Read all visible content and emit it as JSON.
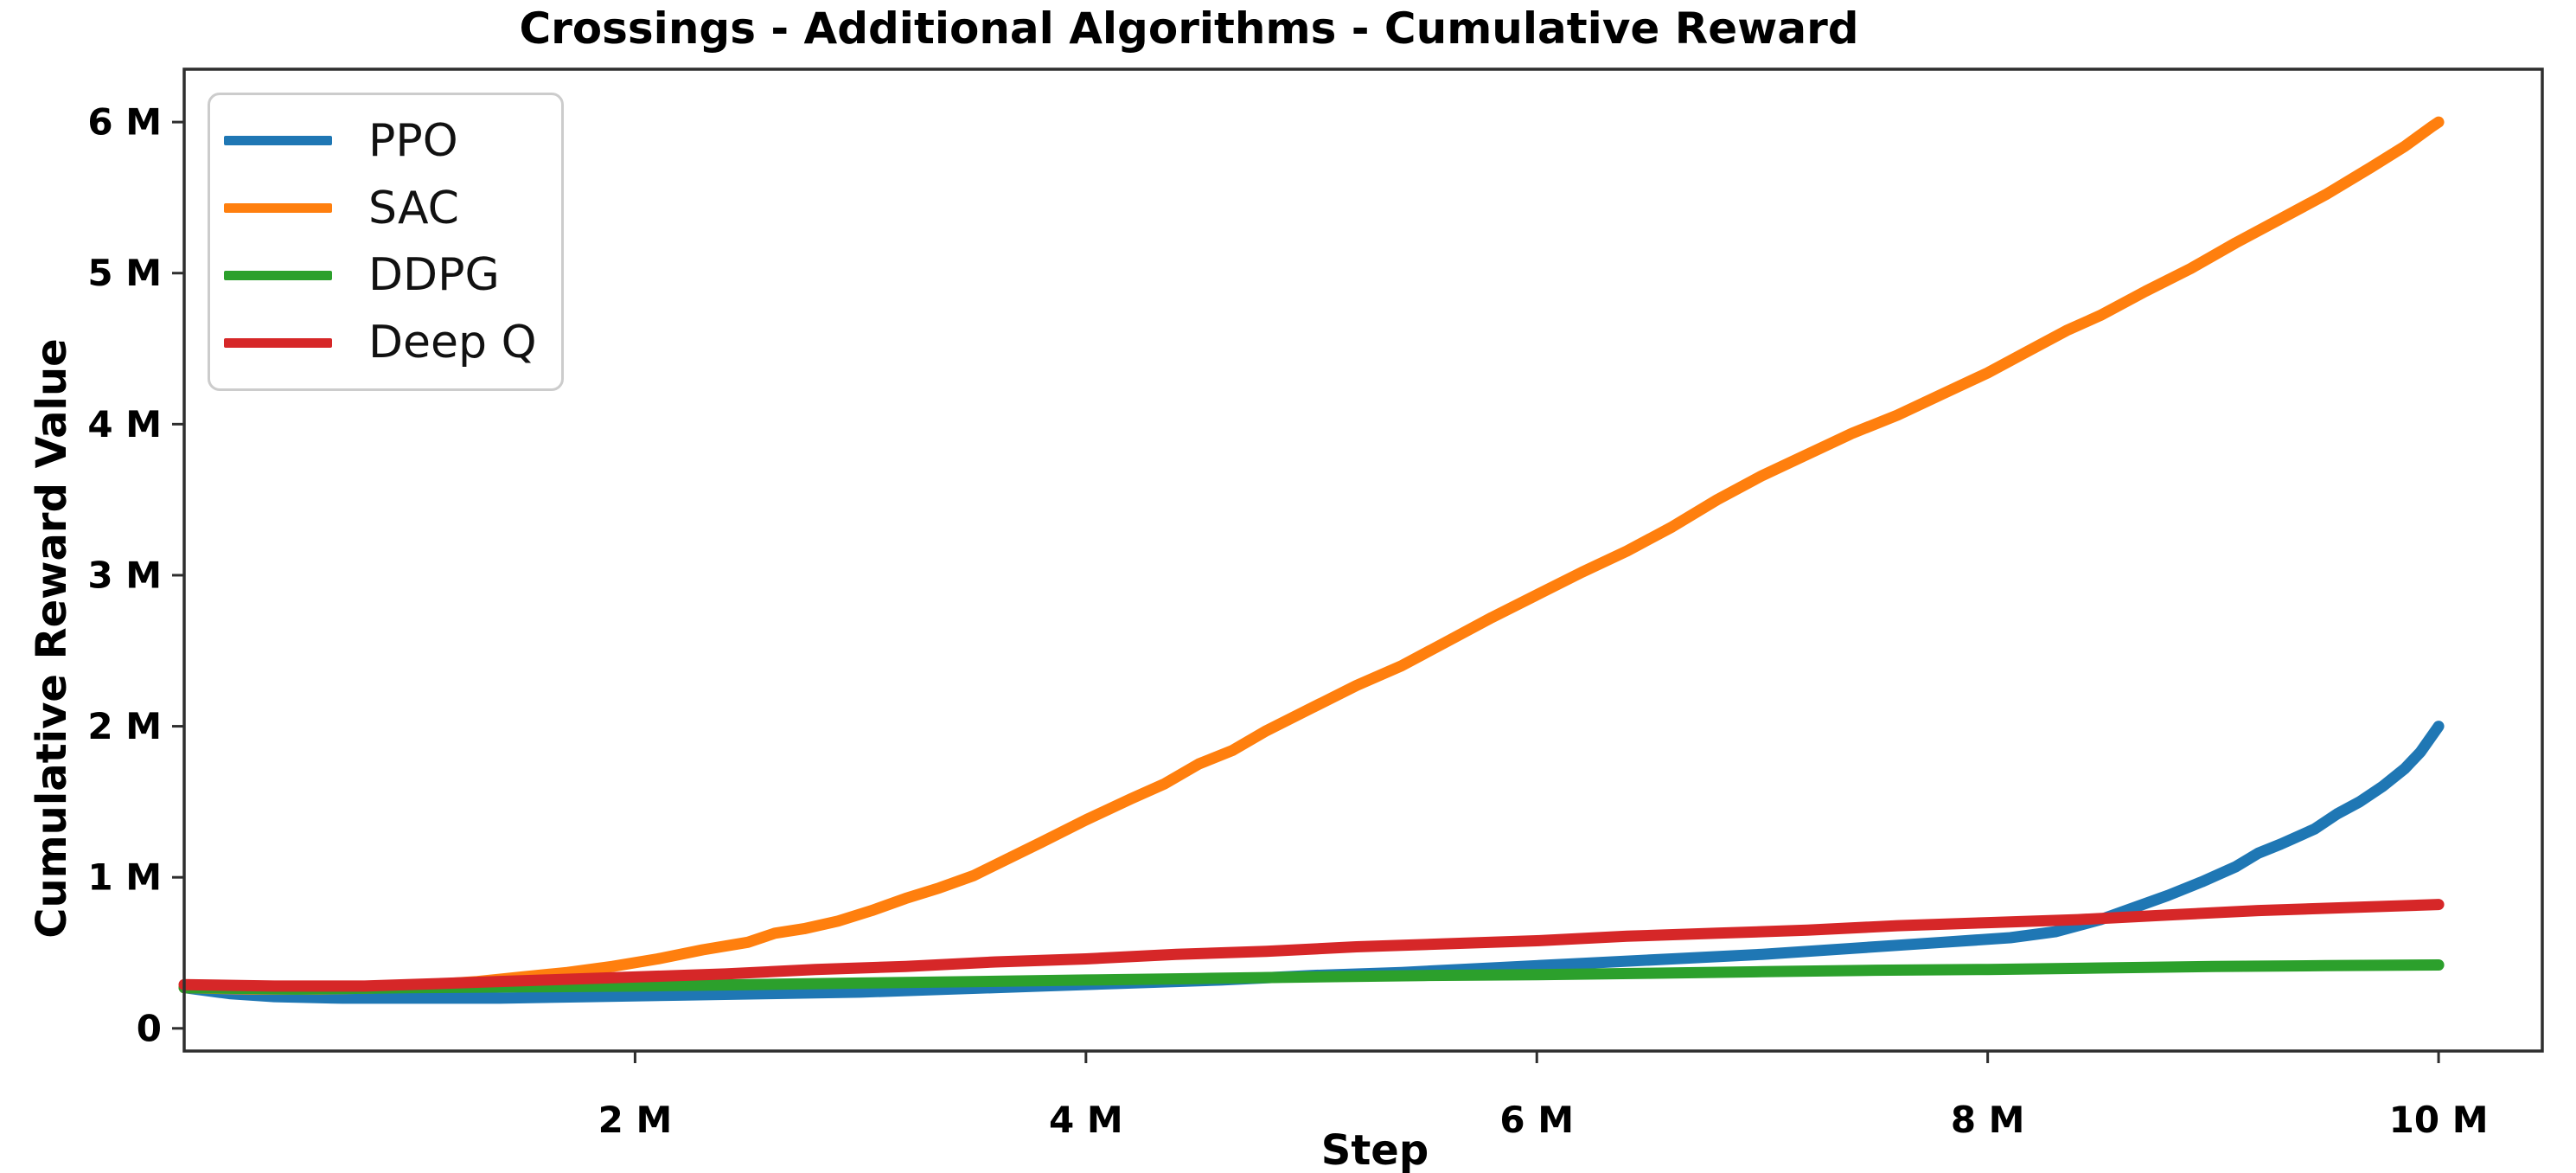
{
  "chart_data": {
    "type": "line",
    "title": "Crossings - Additional Algorithms - Cumulative Reward",
    "xlabel": "Step",
    "ylabel": "Cumulative Reward Value",
    "xlim": [
      0,
      10.46
    ],
    "ylim": [
      -0.15,
      6.35
    ],
    "grid": false,
    "legend_position": "upper left",
    "units": "millions",
    "x_ticks": [
      {
        "value": 2,
        "label": "2 M"
      },
      {
        "value": 4,
        "label": "4 M"
      },
      {
        "value": 6,
        "label": "6 M"
      },
      {
        "value": 8,
        "label": "8 M"
      },
      {
        "value": 10,
        "label": "10 M"
      }
    ],
    "y_ticks": [
      {
        "value": 0,
        "label": "0"
      },
      {
        "value": 1,
        "label": "1 M"
      },
      {
        "value": 2,
        "label": "2 M"
      },
      {
        "value": 3,
        "label": "3 M"
      },
      {
        "value": 4,
        "label": "4 M"
      },
      {
        "value": 5,
        "label": "5 M"
      },
      {
        "value": 6,
        "label": "6 M"
      }
    ],
    "series": [
      {
        "name": "PPO",
        "color": "#1f77b4",
        "points": [
          [
            0,
            0.27
          ],
          [
            0.2,
            0.23
          ],
          [
            0.4,
            0.21
          ],
          [
            0.7,
            0.2
          ],
          [
            1.0,
            0.2
          ],
          [
            1.4,
            0.2
          ],
          [
            1.8,
            0.21
          ],
          [
            2.2,
            0.22
          ],
          [
            2.6,
            0.23
          ],
          [
            3.0,
            0.24
          ],
          [
            3.4,
            0.26
          ],
          [
            3.8,
            0.28
          ],
          [
            4.2,
            0.3
          ],
          [
            4.6,
            0.32
          ],
          [
            5.0,
            0.35
          ],
          [
            5.4,
            0.37
          ],
          [
            5.8,
            0.4
          ],
          [
            6.2,
            0.43
          ],
          [
            6.6,
            0.46
          ],
          [
            7.0,
            0.49
          ],
          [
            7.4,
            0.53
          ],
          [
            7.8,
            0.57
          ],
          [
            8.1,
            0.6
          ],
          [
            8.3,
            0.64
          ],
          [
            8.5,
            0.72
          ],
          [
            8.65,
            0.8
          ],
          [
            8.8,
            0.88
          ],
          [
            8.95,
            0.97
          ],
          [
            9.1,
            1.07
          ],
          [
            9.2,
            1.16
          ],
          [
            9.3,
            1.22
          ],
          [
            9.45,
            1.32
          ],
          [
            9.55,
            1.42
          ],
          [
            9.65,
            1.5
          ],
          [
            9.75,
            1.6
          ],
          [
            9.85,
            1.72
          ],
          [
            9.92,
            1.83
          ],
          [
            10,
            2.0
          ]
        ]
      },
      {
        "name": "SAC",
        "color": "#ff7f0e",
        "points": [
          [
            0,
            0.27
          ],
          [
            0.3,
            0.26
          ],
          [
            0.6,
            0.26
          ],
          [
            0.9,
            0.27
          ],
          [
            1.1,
            0.29
          ],
          [
            1.3,
            0.31
          ],
          [
            1.5,
            0.34
          ],
          [
            1.7,
            0.37
          ],
          [
            1.9,
            0.41
          ],
          [
            2.1,
            0.46
          ],
          [
            2.3,
            0.52
          ],
          [
            2.5,
            0.57
          ],
          [
            2.62,
            0.63
          ],
          [
            2.75,
            0.66
          ],
          [
            2.9,
            0.71
          ],
          [
            3.05,
            0.78
          ],
          [
            3.2,
            0.86
          ],
          [
            3.35,
            0.93
          ],
          [
            3.5,
            1.01
          ],
          [
            3.65,
            1.12
          ],
          [
            3.8,
            1.23
          ],
          [
            4.0,
            1.38
          ],
          [
            4.2,
            1.52
          ],
          [
            4.35,
            1.62
          ],
          [
            4.5,
            1.75
          ],
          [
            4.65,
            1.84
          ],
          [
            4.8,
            1.97
          ],
          [
            5.0,
            2.12
          ],
          [
            5.2,
            2.27
          ],
          [
            5.4,
            2.4
          ],
          [
            5.6,
            2.56
          ],
          [
            5.8,
            2.72
          ],
          [
            6.0,
            2.87
          ],
          [
            6.2,
            3.02
          ],
          [
            6.4,
            3.16
          ],
          [
            6.6,
            3.32
          ],
          [
            6.8,
            3.5
          ],
          [
            7.0,
            3.66
          ],
          [
            7.2,
            3.8
          ],
          [
            7.4,
            3.94
          ],
          [
            7.6,
            4.06
          ],
          [
            7.8,
            4.2
          ],
          [
            8.0,
            4.34
          ],
          [
            8.2,
            4.5
          ],
          [
            8.35,
            4.62
          ],
          [
            8.5,
            4.72
          ],
          [
            8.7,
            4.88
          ],
          [
            8.9,
            5.03
          ],
          [
            9.1,
            5.2
          ],
          [
            9.3,
            5.36
          ],
          [
            9.5,
            5.52
          ],
          [
            9.7,
            5.7
          ],
          [
            9.85,
            5.84
          ],
          [
            9.97,
            5.97
          ],
          [
            10,
            6.0
          ]
        ]
      },
      {
        "name": "DDPG",
        "color": "#2ca02c",
        "points": [
          [
            0,
            0.27
          ],
          [
            0.5,
            0.26
          ],
          [
            1.0,
            0.27
          ],
          [
            1.5,
            0.275
          ],
          [
            2.0,
            0.28
          ],
          [
            2.5,
            0.29
          ],
          [
            3.0,
            0.3
          ],
          [
            3.5,
            0.31
          ],
          [
            4.0,
            0.32
          ],
          [
            4.5,
            0.33
          ],
          [
            5.0,
            0.34
          ],
          [
            5.5,
            0.35
          ],
          [
            6.0,
            0.355
          ],
          [
            6.5,
            0.365
          ],
          [
            7.0,
            0.375
          ],
          [
            7.5,
            0.385
          ],
          [
            8.0,
            0.39
          ],
          [
            8.5,
            0.4
          ],
          [
            9.0,
            0.41
          ],
          [
            9.5,
            0.415
          ],
          [
            10,
            0.42
          ]
        ]
      },
      {
        "name": "Deep Q",
        "color": "#d62728",
        "points": [
          [
            0,
            0.29
          ],
          [
            0.4,
            0.28
          ],
          [
            0.8,
            0.28
          ],
          [
            1.2,
            0.3
          ],
          [
            1.6,
            0.32
          ],
          [
            2.0,
            0.34
          ],
          [
            2.4,
            0.36
          ],
          [
            2.8,
            0.39
          ],
          [
            3.2,
            0.41
          ],
          [
            3.6,
            0.44
          ],
          [
            4.0,
            0.46
          ],
          [
            4.4,
            0.49
          ],
          [
            4.8,
            0.51
          ],
          [
            5.2,
            0.54
          ],
          [
            5.6,
            0.56
          ],
          [
            6.0,
            0.58
          ],
          [
            6.4,
            0.61
          ],
          [
            6.8,
            0.63
          ],
          [
            7.2,
            0.65
          ],
          [
            7.6,
            0.68
          ],
          [
            8.0,
            0.7
          ],
          [
            8.4,
            0.72
          ],
          [
            8.8,
            0.75
          ],
          [
            9.2,
            0.78
          ],
          [
            9.6,
            0.8
          ],
          [
            10,
            0.82
          ]
        ]
      }
    ],
    "style": {
      "line_width": 13,
      "spine_color": "#2e2e2e",
      "spine_width": 3.5,
      "tick_length": 14,
      "tick_width": 3,
      "background": "#ffffff"
    }
  }
}
